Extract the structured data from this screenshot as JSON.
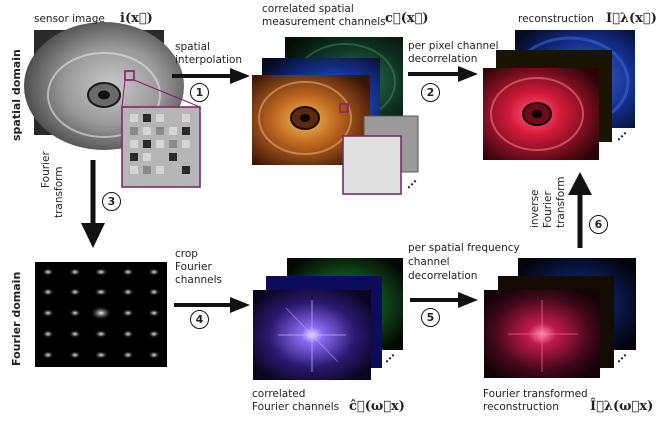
{
  "labels": {
    "sensor_image": "sensor image",
    "sensor_symbol": "i(x⃗)",
    "correlated_spatial": [
      "correlated spatial",
      "measurement channels"
    ],
    "correlated_spatial_symbol": "c⃗(x⃗)",
    "reconstruction": "reconstruction",
    "reconstruction_symbol": "I⃗λ(x⃗)",
    "spatial_domain": "spatial domain",
    "fourier_domain": "Fourier domain",
    "spatial_interpolation": [
      "spatial",
      "interpolation"
    ],
    "per_pixel": [
      "per pixel channel",
      "decorrelation"
    ],
    "fourier_transform": [
      "Fourier",
      "transform"
    ],
    "inverse_fourier": [
      "inverse",
      "Fourier",
      "transform"
    ],
    "crop_fourier": [
      "crop",
      "Fourier",
      "channels"
    ],
    "per_spatial_frequency": [
      "per spatial frequency",
      "channel",
      "decorrelation"
    ],
    "correlated_fourier": [
      "correlated",
      "Fourier channels"
    ],
    "correlated_fourier_symbol": "ĉ⃗(ω⃗x)",
    "fourier_transformed": [
      "Fourier transformed",
      "reconstruction"
    ],
    "fourier_transformed_symbol": "Î⃗λ(ω⃗x)",
    "ellipsis": "..."
  },
  "steps": [
    "1",
    "2",
    "3",
    "4",
    "5",
    "6"
  ],
  "colors": {
    "arrow": "#111111",
    "mosaic_border": "#7a2a6a",
    "red_channel": "#d21a3a",
    "blue_channel": "#1a4fd8",
    "green_channel": "#1f8a3c",
    "purple_spectrum": "#6a3ad0"
  }
}
